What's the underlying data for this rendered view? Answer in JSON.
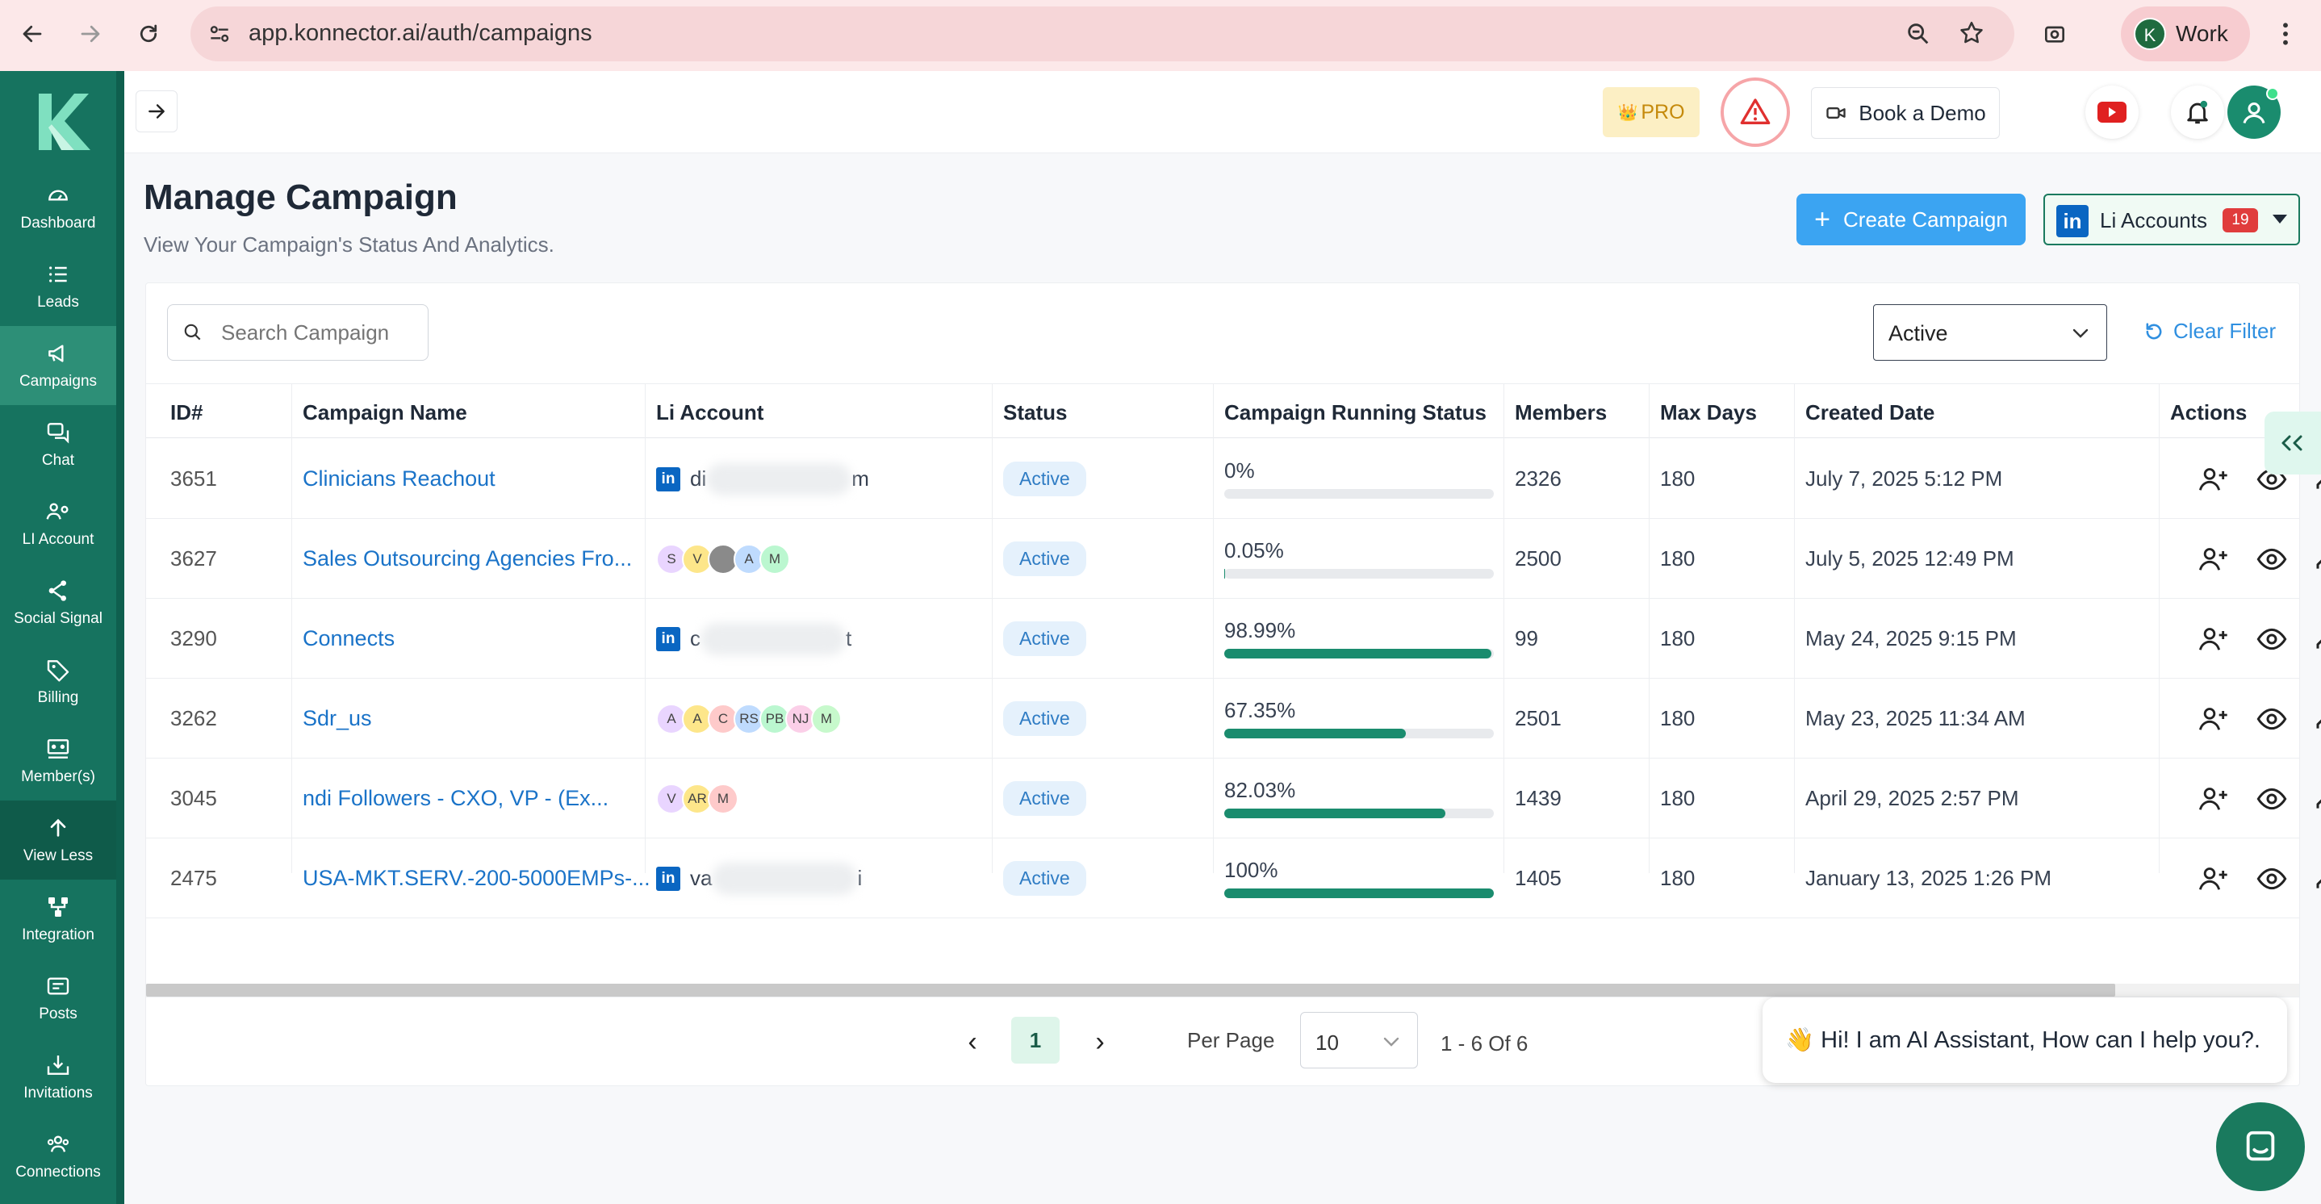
{
  "browser": {
    "url": "app.konnector.ai/auth/campaigns",
    "profile_initial": "K",
    "profile_label": "Work"
  },
  "sidebar": {
    "items": [
      {
        "label": "Dashboard",
        "icon": "dashboard-icon"
      },
      {
        "label": "Leads",
        "icon": "list-icon"
      },
      {
        "label": "Campaigns",
        "icon": "megaphone-icon"
      },
      {
        "label": "Chat",
        "icon": "chat-icon"
      },
      {
        "label": "LI Account",
        "icon": "users-gear-icon"
      },
      {
        "label": "Social Signal",
        "icon": "share-icon"
      },
      {
        "label": "Billing",
        "icon": "tag-icon"
      },
      {
        "label": "Member(s)",
        "icon": "members-icon"
      },
      {
        "label": "View Less",
        "icon": "arrow-up-icon"
      },
      {
        "label": "Integration",
        "icon": "integration-icon"
      },
      {
        "label": "Posts",
        "icon": "posts-icon"
      },
      {
        "label": "Invitations",
        "icon": "invitations-icon"
      },
      {
        "label": "Connections",
        "icon": "connections-icon"
      }
    ],
    "active": "Campaigns"
  },
  "topbar": {
    "pro_label": "PRO",
    "pro_icon": "👑",
    "book_demo_label": "Book a Demo"
  },
  "page": {
    "title": "Manage Campaign",
    "subtitle": "View Your Campaign's Status And Analytics.",
    "create_button": "Create Campaign",
    "li_accounts_label": "Li Accounts",
    "li_accounts_count": "19"
  },
  "filters": {
    "search_placeholder": "Search Campaign",
    "status_value": "Active",
    "clear_label": "Clear Filter"
  },
  "table": {
    "columns": [
      "ID#",
      "Campaign Name",
      "Li Account",
      "Status",
      "Campaign Running Status",
      "Members",
      "Max Days",
      "Created Date",
      "Actions"
    ],
    "rows": [
      {
        "id": "3651",
        "name": "Clinicians Reachout",
        "account_type": "linkedin",
        "account_prefix": "di",
        "account_suffix": "m",
        "status": "Active",
        "progress_label": "0%",
        "progress": 0,
        "members": "2326",
        "max_days": "180",
        "created": "July 7, 2025 5:12 PM"
      },
      {
        "id": "3627",
        "name": "Sales Outsourcing Agencies Fro...",
        "account_type": "avatars",
        "avatars": [
          "S",
          "V",
          "",
          "A",
          "M"
        ],
        "status": "Active",
        "progress_label": "0.05%",
        "progress": 0.05,
        "members": "2500",
        "max_days": "180",
        "created": "July 5, 2025 12:49 PM"
      },
      {
        "id": "3290",
        "name": "Connects",
        "account_type": "linkedin",
        "account_prefix": "c",
        "account_suffix": "t",
        "status": "Active",
        "progress_label": "98.99%",
        "progress": 98.99,
        "members": "99",
        "max_days": "180",
        "created": "May 24, 2025 9:15 PM"
      },
      {
        "id": "3262",
        "name": "Sdr_us",
        "account_type": "avatars",
        "avatars": [
          "A",
          "A",
          "C",
          "RS",
          "PB",
          "NJ",
          "M"
        ],
        "status": "Active",
        "progress_label": "67.35%",
        "progress": 67.35,
        "members": "2501",
        "max_days": "180",
        "created": "May 23, 2025 11:34 AM"
      },
      {
        "id": "3045",
        "name": "ndi Followers - CXO, VP - (Ex...",
        "account_type": "avatars",
        "avatars": [
          "V",
          "AR",
          "M"
        ],
        "status": "Active",
        "progress_label": "82.03%",
        "progress": 82.03,
        "members": "1439",
        "max_days": "180",
        "created": "April 29, 2025 2:57 PM"
      },
      {
        "id": "2475",
        "name": "USA-MKT.SERV.-200-5000EMPs-...",
        "account_type": "linkedin",
        "account_prefix": "va",
        "account_suffix": "i",
        "status": "Active",
        "progress_label": "100%",
        "progress": 100,
        "members": "1405",
        "max_days": "180",
        "created": "January 13, 2025 1:26 PM"
      }
    ]
  },
  "pagination": {
    "prev": "‹",
    "current": "1",
    "next": "›",
    "per_page_label": "Per Page",
    "per_page_value": "10",
    "range": "1 - 6 Of 6"
  },
  "assistant": {
    "message": "👋 Hi! I am AI Assistant, How can I help you?."
  },
  "colors": {
    "brand": "#16735f",
    "progress": "#1a8c6e",
    "link": "#1a73c8",
    "create_button": "#3ba4f2"
  }
}
